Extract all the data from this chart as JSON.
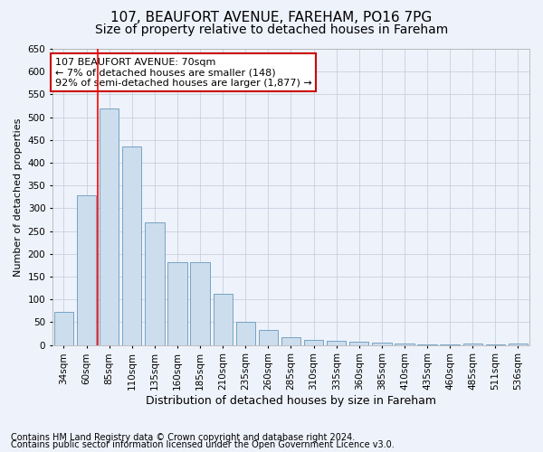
{
  "title_line1": "107, BEAUFORT AVENUE, FAREHAM, PO16 7PG",
  "title_line2": "Size of property relative to detached houses in Fareham",
  "xlabel": "Distribution of detached houses by size in Fareham",
  "ylabel": "Number of detached properties",
  "footnote1": "Contains HM Land Registry data © Crown copyright and database right 2024.",
  "footnote2": "Contains public sector information licensed under the Open Government Licence v3.0.",
  "annotation_line1": "107 BEAUFORT AVENUE: 70sqm",
  "annotation_line2": "← 7% of detached houses are smaller (148)",
  "annotation_line3": "92% of semi-detached houses are larger (1,877) →",
  "categories": [
    "34sqm",
    "60sqm",
    "85sqm",
    "110sqm",
    "135sqm",
    "160sqm",
    "185sqm",
    "210sqm",
    "235sqm",
    "260sqm",
    "285sqm",
    "310sqm",
    "335sqm",
    "360sqm",
    "385sqm",
    "410sqm",
    "435sqm",
    "460sqm",
    "485sqm",
    "511sqm",
    "536sqm"
  ],
  "values": [
    72,
    328,
    520,
    436,
    270,
    181,
    181,
    112,
    50,
    34,
    18,
    12,
    10,
    8,
    6,
    4,
    1,
    1,
    4,
    1,
    4
  ],
  "bar_color": "#ccdded",
  "bar_edge_color": "#6699bb",
  "red_line_x": 1.5,
  "ylim": [
    0,
    650
  ],
  "yticks": [
    0,
    50,
    100,
    150,
    200,
    250,
    300,
    350,
    400,
    450,
    500,
    550,
    600,
    650
  ],
  "bg_color": "#eef2fa",
  "grid_color": "#c8d0e0",
  "annotation_box_facecolor": "#ffffff",
  "annotation_border_color": "#cc0000",
  "title1_fontsize": 11,
  "title2_fontsize": 10,
  "xlabel_fontsize": 9,
  "ylabel_fontsize": 8,
  "annotation_fontsize": 8,
  "tick_fontsize": 7.5,
  "footnote_fontsize": 7
}
